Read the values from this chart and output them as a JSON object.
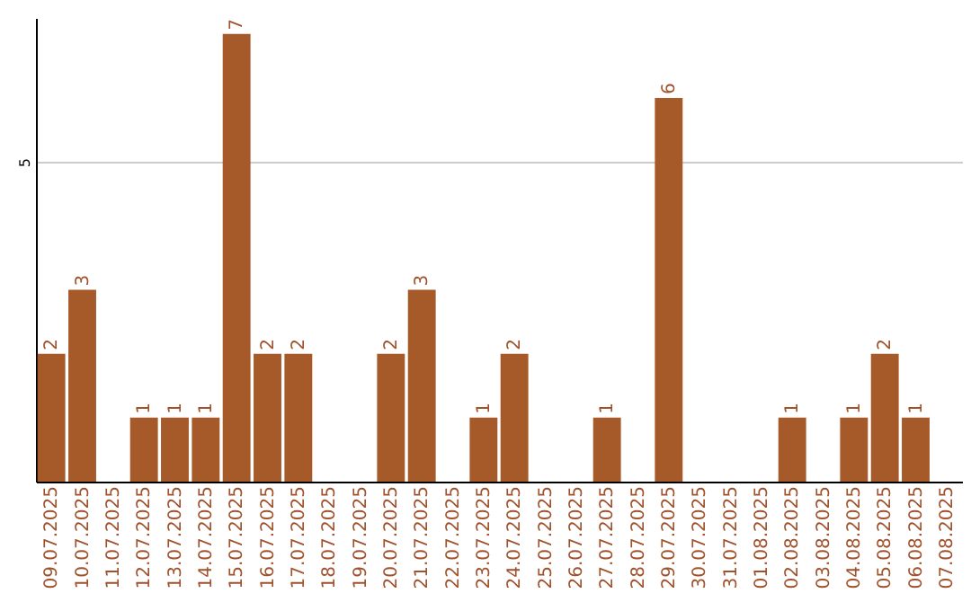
{
  "chart_data": {
    "type": "bar",
    "categories": [
      "09.07.2025",
      "10.07.2025",
      "11.07.2025",
      "12.07.2025",
      "13.07.2025",
      "14.07.2025",
      "15.07.2025",
      "16.07.2025",
      "17.07.2025",
      "18.07.2025",
      "19.07.2025",
      "20.07.2025",
      "21.07.2025",
      "22.07.2025",
      "23.07.2025",
      "24.07.2025",
      "25.07.2025",
      "26.07.2025",
      "27.07.2025",
      "28.07.2025",
      "29.07.2025",
      "30.07.2025",
      "31.07.2025",
      "01.08.2025",
      "02.08.2025",
      "03.08.2025",
      "04.08.2025",
      "05.08.2025",
      "06.08.2025",
      "07.08.2025"
    ],
    "values": [
      2,
      3,
      null,
      1,
      1,
      1,
      7,
      2,
      2,
      null,
      null,
      2,
      3,
      null,
      1,
      2,
      null,
      null,
      1,
      null,
      6,
      null,
      null,
      null,
      1,
      null,
      1,
      2,
      1,
      null
    ],
    "color": "#a65a2a",
    "ylim": [
      0,
      7.25
    ],
    "yticks": [
      5
    ],
    "grid": "y",
    "data_labels": true
  }
}
